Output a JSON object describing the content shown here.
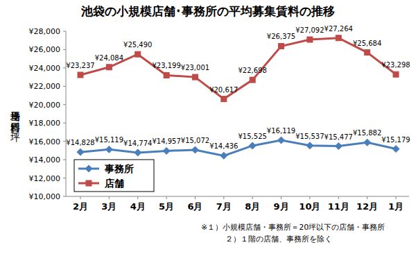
{
  "chart_data": {
    "type": "line",
    "title": "池袋の小規模店舗･事務所の平均募集賃料の推移",
    "y_label": "平均坪当り賃料（円／坪）",
    "annotations": [
      "※１）小規模店舗・事務所＝20坪以下の店舗・事務所",
      "２）１階の店舗、事務所を除く"
    ],
    "categories": [
      "2月",
      "3月",
      "4月",
      "5月",
      "6月",
      "7月",
      "8月",
      "9月",
      "10月",
      "11月",
      "12月",
      "1月"
    ],
    "series": [
      {
        "name": "事務所",
        "color": "#4a7ebb",
        "marker": "diamond",
        "line_style": "solid",
        "values": [
          14828,
          15119,
          14774,
          14957,
          15072,
          14436,
          15525,
          16119,
          15537,
          15477,
          15882,
          15179
        ],
        "value_labels": [
          "¥14,828",
          "¥15,119",
          "¥14,774",
          "¥14,957",
          "¥15,072",
          "¥14,436",
          "¥15,525",
          "¥16,119",
          "¥15,537",
          "¥15,477",
          "¥15,882",
          "¥15,179"
        ]
      },
      {
        "name": "店舗",
        "color": "#be4b48",
        "marker": "square",
        "line_style": "solid",
        "values": [
          23237,
          24084,
          25490,
          23199,
          23001,
          20617,
          22698,
          26375,
          27092,
          27264,
          25684,
          23298
        ],
        "value_labels": [
          "¥23,237",
          "¥24,084",
          "¥25,490",
          "¥23,199",
          "¥23,001",
          "¥20,617",
          "¥22,698",
          "¥26,375",
          "¥27,092",
          "¥27,264",
          "¥25,684",
          "¥23,298"
        ]
      }
    ],
    "ylim": [
      10000,
      28000
    ],
    "yticks": [
      {
        "value": 10000,
        "label": "¥10,000"
      },
      {
        "value": 12000,
        "label": "¥12,000"
      },
      {
        "value": 14000,
        "label": "¥14,000"
      },
      {
        "value": 16000,
        "label": "¥16,000"
      },
      {
        "value": 18000,
        "label": "¥18,000"
      },
      {
        "value": 20000,
        "label": "¥20,000"
      },
      {
        "value": 22000,
        "label": "¥22,000"
      },
      {
        "value": 24000,
        "label": "¥24,000"
      },
      {
        "value": 26000,
        "label": "¥26,000"
      },
      {
        "value": 28000,
        "label": "¥28,000"
      }
    ],
    "grid": false,
    "legend": "left",
    "data_labels": true
  }
}
